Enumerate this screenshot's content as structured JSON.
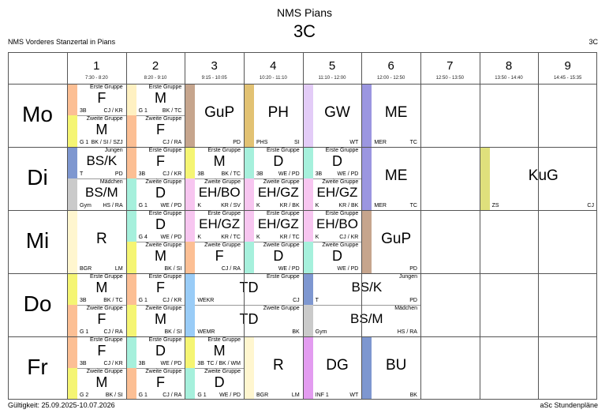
{
  "school": "NMS Pians",
  "class_name": "3C",
  "subtitle_left": "NMS Vorderes Stanzertal in Pians",
  "subtitle_right": "3C",
  "footer_left": "Gültigkeit: 25.09.2025-10.07.2026",
  "footer_right": "aSc Stundenpläne",
  "periods": [
    {
      "num": "1",
      "time": "7:30 - 8:20"
    },
    {
      "num": "2",
      "time": "8:20 - 9:10"
    },
    {
      "num": "3",
      "time": "9:15 - 10:05"
    },
    {
      "num": "4",
      "time": "10:20 - 11:10"
    },
    {
      "num": "5",
      "time": "11:10 - 12:00"
    },
    {
      "num": "6",
      "time": "12:00 - 12:50"
    },
    {
      "num": "7",
      "time": "12:50 - 13:50"
    },
    {
      "num": "8",
      "time": "13:50 - 14:40"
    },
    {
      "num": "9",
      "time": "14:45 - 15:35"
    }
  ],
  "days": [
    "Mo",
    "Di",
    "Mi",
    "Do",
    "Fr"
  ],
  "lessons": [
    {
      "day": 0,
      "p": 0,
      "span": 1,
      "half": "top",
      "color": "#fcbf94",
      "group": "Erste Gruppe",
      "subject": "F",
      "room": "3B",
      "teacher": "CJ / KR"
    },
    {
      "day": 0,
      "p": 0,
      "span": 1,
      "half": "bottom",
      "color": "#f5f573",
      "group": "Zweite Gruppe",
      "subject": "M",
      "room": "G 1",
      "teacher": "BK / SI / SZJ"
    },
    {
      "day": 0,
      "p": 1,
      "span": 1,
      "half": "top",
      "color": "#fff1c2",
      "group": "Erste Gruppe",
      "subject": "M",
      "room": "G 1",
      "teacher": "BK / TC"
    },
    {
      "day": 0,
      "p": 1,
      "span": 1,
      "half": "bottom",
      "color": "#fcbf94",
      "group": "Zweite Gruppe",
      "subject": "F",
      "room": "",
      "teacher": "CJ / RA"
    },
    {
      "day": 0,
      "p": 2,
      "span": 1,
      "half": "full",
      "color": "#c6a58d",
      "group": "",
      "subject": "GuP",
      "room": "",
      "teacher": "PD"
    },
    {
      "day": 0,
      "p": 3,
      "span": 1,
      "half": "full",
      "color": "#e2c273",
      "group": "",
      "subject": "PH",
      "room": "PHS",
      "teacher": "SI"
    },
    {
      "day": 0,
      "p": 4,
      "span": 1,
      "half": "full",
      "color": "#e3ccf7",
      "group": "",
      "subject": "GW",
      "room": "",
      "teacher": "WT"
    },
    {
      "day": 0,
      "p": 5,
      "span": 1,
      "half": "full",
      "color": "#9b96e0",
      "group": "",
      "subject": "ME",
      "room": "MER",
      "teacher": "TC"
    },
    {
      "day": 1,
      "p": 0,
      "span": 1,
      "half": "top",
      "color": "#7e97d0",
      "group": "Jungen",
      "subject": "BS/K",
      "room": "T",
      "teacher": "PD"
    },
    {
      "day": 1,
      "p": 0,
      "span": 1,
      "half": "bottom",
      "color": "#cacaca",
      "group": "Mädchen",
      "subject": "BS/M",
      "room": "Gym",
      "teacher": "HS / RA"
    },
    {
      "day": 1,
      "p": 1,
      "span": 1,
      "half": "top",
      "color": "#fcbf94",
      "group": "Erste Gruppe",
      "subject": "F",
      "room": "3B",
      "teacher": "CJ / KR"
    },
    {
      "day": 1,
      "p": 1,
      "span": 1,
      "half": "bottom",
      "color": "#a6f0dc",
      "group": "Zweite Gruppe",
      "subject": "D",
      "room": "G 1",
      "teacher": "WE / PD"
    },
    {
      "day": 1,
      "p": 2,
      "span": 1,
      "half": "top",
      "color": "#f5f573",
      "group": "Erste Gruppe",
      "subject": "M",
      "room": "3B",
      "teacher": "BK / TC"
    },
    {
      "day": 1,
      "p": 2,
      "span": 1,
      "half": "bottom",
      "color": "#f7c6f0",
      "group": "Zweite Gruppe",
      "subject": "EH/BO",
      "room": "K",
      "teacher": "KR / SV"
    },
    {
      "day": 1,
      "p": 3,
      "span": 1,
      "half": "top",
      "color": "#a6f0dc",
      "group": "Erste Gruppe",
      "subject": "D",
      "room": "3B",
      "teacher": "WE / PD"
    },
    {
      "day": 1,
      "p": 3,
      "span": 1,
      "half": "bottom",
      "color": "#f7c6f0",
      "group": "Zweite Gruppe",
      "subject": "EH/GZ",
      "room": "K",
      "teacher": "KR / BK"
    },
    {
      "day": 1,
      "p": 4,
      "span": 1,
      "half": "top",
      "color": "#a6f0dc",
      "group": "Erste Gruppe",
      "subject": "D",
      "room": "3B",
      "teacher": "WE / PD"
    },
    {
      "day": 1,
      "p": 4,
      "span": 1,
      "half": "bottom",
      "color": "#f7c6f0",
      "group": "Zweite Gruppe",
      "subject": "EH/GZ",
      "room": "K",
      "teacher": "KR / BK"
    },
    {
      "day": 1,
      "p": 5,
      "span": 1,
      "half": "full",
      "color": "#9b96e0",
      "group": "",
      "subject": "ME",
      "room": "MER",
      "teacher": "TC"
    },
    {
      "day": 1,
      "p": 7,
      "span": 2,
      "half": "full",
      "color": "#dfe07c",
      "group": "",
      "subject": "KuG",
      "room": "ZS",
      "teacher": "CJ"
    },
    {
      "day": 2,
      "p": 0,
      "span": 1,
      "half": "full",
      "color": "#fff6cf",
      "group": "",
      "subject": "R",
      "room": "BGR",
      "teacher": "LM"
    },
    {
      "day": 2,
      "p": 1,
      "span": 1,
      "half": "top",
      "color": "#a6f0dc",
      "group": "Erste Gruppe",
      "subject": "D",
      "room": "G 4",
      "teacher": "WE / PD"
    },
    {
      "day": 2,
      "p": 1,
      "span": 1,
      "half": "bottom",
      "color": "#f5f573",
      "group": "Zweite Gruppe",
      "subject": "M",
      "room": "",
      "teacher": "BK / SI"
    },
    {
      "day": 2,
      "p": 2,
      "span": 1,
      "half": "top",
      "color": "#f7c6f0",
      "group": "Erste Gruppe",
      "subject": "EH/GZ",
      "room": "K",
      "teacher": "KR / TC"
    },
    {
      "day": 2,
      "p": 2,
      "span": 1,
      "half": "bottom",
      "color": "#fcbf94",
      "group": "Zweite Gruppe",
      "subject": "F",
      "room": "",
      "teacher": "CJ / RA"
    },
    {
      "day": 2,
      "p": 3,
      "span": 1,
      "half": "top",
      "color": "#f7c6f0",
      "group": "Erste Gruppe",
      "subject": "EH/GZ",
      "room": "K",
      "teacher": "KR / TC"
    },
    {
      "day": 2,
      "p": 3,
      "span": 1,
      "half": "bottom",
      "color": "#a6f0dc",
      "group": "Zweite Gruppe",
      "subject": "D",
      "room": "",
      "teacher": "WE / PD"
    },
    {
      "day": 2,
      "p": 4,
      "span": 1,
      "half": "top",
      "color": "#f7c6f0",
      "group": "Erste Gruppe",
      "subject": "EH/BO",
      "room": "K",
      "teacher": "CJ / KR"
    },
    {
      "day": 2,
      "p": 4,
      "span": 1,
      "half": "bottom",
      "color": "#a6f0dc",
      "group": "Zweite Gruppe",
      "subject": "D",
      "room": "",
      "teacher": "WE / PD"
    },
    {
      "day": 2,
      "p": 5,
      "span": 1,
      "half": "full",
      "color": "#c6a58d",
      "group": "",
      "subject": "GuP",
      "room": "",
      "teacher": "PD"
    },
    {
      "day": 3,
      "p": 0,
      "span": 1,
      "half": "top",
      "color": "#f5f573",
      "group": "Erste Gruppe",
      "subject": "M",
      "room": "3B",
      "teacher": "BK / TC"
    },
    {
      "day": 3,
      "p": 0,
      "span": 1,
      "half": "bottom",
      "color": "#fcbf94",
      "group": "Zweite Gruppe",
      "subject": "F",
      "room": "G 1",
      "teacher": "CJ / RA"
    },
    {
      "day": 3,
      "p": 1,
      "span": 1,
      "half": "top",
      "color": "#fcbf94",
      "group": "Erste Gruppe",
      "subject": "F",
      "room": "G 1",
      "teacher": "CJ / KR"
    },
    {
      "day": 3,
      "p": 1,
      "span": 1,
      "half": "bottom",
      "color": "#f5f573",
      "group": "Zweite Gruppe",
      "subject": "M",
      "room": "",
      "teacher": "BK / SI"
    },
    {
      "day": 3,
      "p": 2,
      "span": 2,
      "half": "top",
      "color": "#99ccf7",
      "group": "Erste Gruppe",
      "subject": "TD",
      "room": "WEKR",
      "teacher": "CJ"
    },
    {
      "day": 3,
      "p": 2,
      "span": 2,
      "half": "bottom",
      "color": "#99ccf7",
      "group": "Zweite Gruppe",
      "subject": "TD",
      "room": "WEMR",
      "teacher": "BK"
    },
    {
      "day": 3,
      "p": 4,
      "span": 2,
      "half": "top",
      "color": "#7e97d0",
      "group": "Jungen",
      "subject": "BS/K",
      "room": "T",
      "teacher": "PD"
    },
    {
      "day": 3,
      "p": 4,
      "span": 2,
      "half": "bottom",
      "color": "#cacaca",
      "group": "Mädchen",
      "subject": "BS/M",
      "room": "Gym",
      "teacher": "HS / RA"
    },
    {
      "day": 4,
      "p": 0,
      "span": 1,
      "half": "top",
      "color": "#fcbf94",
      "group": "Erste Gruppe",
      "subject": "F",
      "room": "3B",
      "teacher": "CJ / KR"
    },
    {
      "day": 4,
      "p": 0,
      "span": 1,
      "half": "bottom",
      "color": "#f5f573",
      "group": "Zweite Gruppe",
      "subject": "M",
      "room": "G 2",
      "teacher": "BK / SI"
    },
    {
      "day": 4,
      "p": 1,
      "span": 1,
      "half": "top",
      "color": "#a6f0dc",
      "group": "Erste Gruppe",
      "subject": "D",
      "room": "3B",
      "teacher": "WE / PD"
    },
    {
      "day": 4,
      "p": 1,
      "span": 1,
      "half": "bottom",
      "color": "#fcbf94",
      "group": "Zweite Gruppe",
      "subject": "F",
      "room": "G 1",
      "teacher": "CJ / RA"
    },
    {
      "day": 4,
      "p": 2,
      "span": 1,
      "half": "top",
      "color": "#f5f573",
      "group": "Erste Gruppe",
      "subject": "M",
      "room": "3B",
      "teacher": "TC / BK / WM"
    },
    {
      "day": 4,
      "p": 2,
      "span": 1,
      "half": "bottom",
      "color": "#a6f0dc",
      "group": "Zweite Gruppe",
      "subject": "D",
      "room": "G 1",
      "teacher": "WE / PD"
    },
    {
      "day": 4,
      "p": 3,
      "span": 1,
      "half": "full",
      "color": "#fff6cf",
      "group": "",
      "subject": "R",
      "room": "BGR",
      "teacher": "LM"
    },
    {
      "day": 4,
      "p": 4,
      "span": 1,
      "half": "full",
      "color": "#e39cf0",
      "group": "",
      "subject": "DG",
      "room": "INF 1",
      "teacher": "WT"
    },
    {
      "day": 4,
      "p": 5,
      "span": 1,
      "half": "full",
      "color": "#7e97d0",
      "group": "",
      "subject": "BU",
      "room": "",
      "teacher": "BK"
    }
  ]
}
